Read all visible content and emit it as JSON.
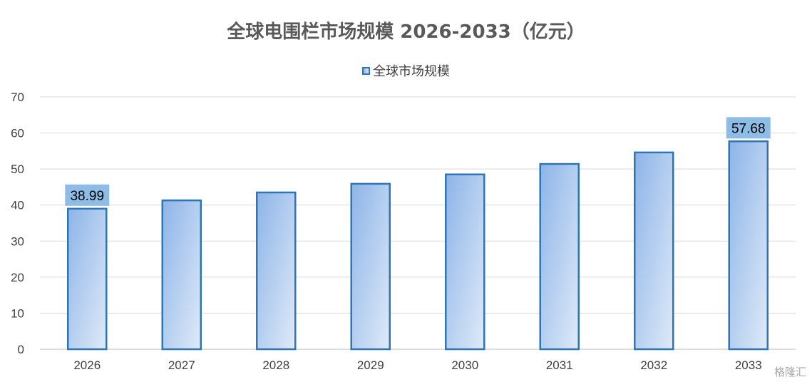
{
  "chart_data": {
    "type": "bar",
    "title": "全球电围栏市场规模 2026-2033（亿元）",
    "categories": [
      "2026",
      "2027",
      "2028",
      "2029",
      "2030",
      "2031",
      "2032",
      "2033"
    ],
    "series": [
      {
        "name": "全球市场规模",
        "values": [
          38.99,
          41.3,
          43.5,
          45.9,
          48.5,
          51.4,
          54.6,
          57.68
        ]
      }
    ],
    "data_labels": [
      {
        "category": "2026",
        "text": "38.99"
      },
      {
        "category": "2033",
        "text": "57.68"
      }
    ],
    "ylim": [
      0,
      70
    ],
    "yticks": [
      0,
      10,
      20,
      30,
      40,
      50,
      60,
      70
    ],
    "grid": true,
    "legend_position": "top-center",
    "colors": {
      "bar_edge": "#2e75b6",
      "bar_fill_start": "#8db4e8",
      "bar_fill_end": "#dbe7f7",
      "label_bg": "#8dbde6",
      "grid": "#d9d9d9",
      "axis_text": "#404040"
    }
  },
  "watermark": "格隆汇"
}
